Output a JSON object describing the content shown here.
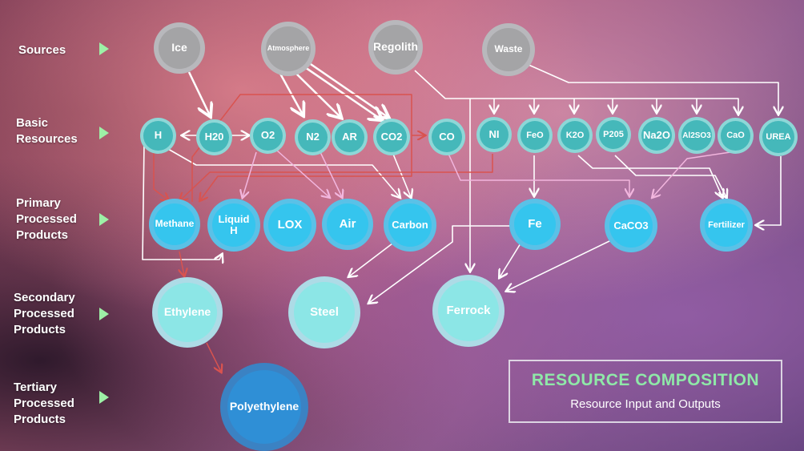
{
  "rows": {
    "sources": "Sources",
    "basic_1": "Basic",
    "basic_2": "Resources",
    "primary_1": "Primary",
    "primary_2": "Processed",
    "primary_3": "Products",
    "secondary_1": "Secondary",
    "secondary_2": "Processed",
    "secondary_3": "Products",
    "tertiary_1": "Tertiary",
    "tertiary_2": "Processed",
    "tertiary_3": "Products"
  },
  "sources": {
    "ice": "Ice",
    "atmosphere": "Atmosphere",
    "regolith": "Regolith",
    "waste": "Waste"
  },
  "basic": {
    "h": "H",
    "h20": "H20",
    "o2": "O2",
    "n2": "N2",
    "ar": "AR",
    "co2": "CO2",
    "co": "CO",
    "ni": "NI",
    "feo": "FeO",
    "k2o": "K2O",
    "p205": "P205",
    "na2o": "Na2O",
    "al2so3": "Al2SO3",
    "cao": "CaO",
    "urea": "UREA"
  },
  "primary": {
    "methane": "Methane",
    "liquid_h_1": "Liquid",
    "liquid_h_2": "H",
    "lox": "LOX",
    "air": "Air",
    "carbon": "Carbon",
    "fe": "Fe",
    "caco3": "CaCO3",
    "fertilizer": "Fertilizer"
  },
  "secondary": {
    "ethylene": "Ethylene",
    "steel": "Steel",
    "ferrock": "Ferrock"
  },
  "tertiary": {
    "polyethylene": "Polyethylene"
  },
  "title": {
    "main": "RESOURCE COMPOSITION",
    "sub": "Resource Input and Outputs"
  },
  "colors": {
    "source_node": "#a4a4a6",
    "basic_node": "#45b8ba",
    "primary_node": "#35c5ee",
    "secondary_node": "#8ce6e6",
    "tertiary_node": "#2f8fd6",
    "row_arrow": "#9df0a6",
    "title_accent": "#8fe8a8",
    "edge_white": "#ffffff",
    "edge_red": "#d9534f",
    "edge_pink": "#f2b6de"
  }
}
